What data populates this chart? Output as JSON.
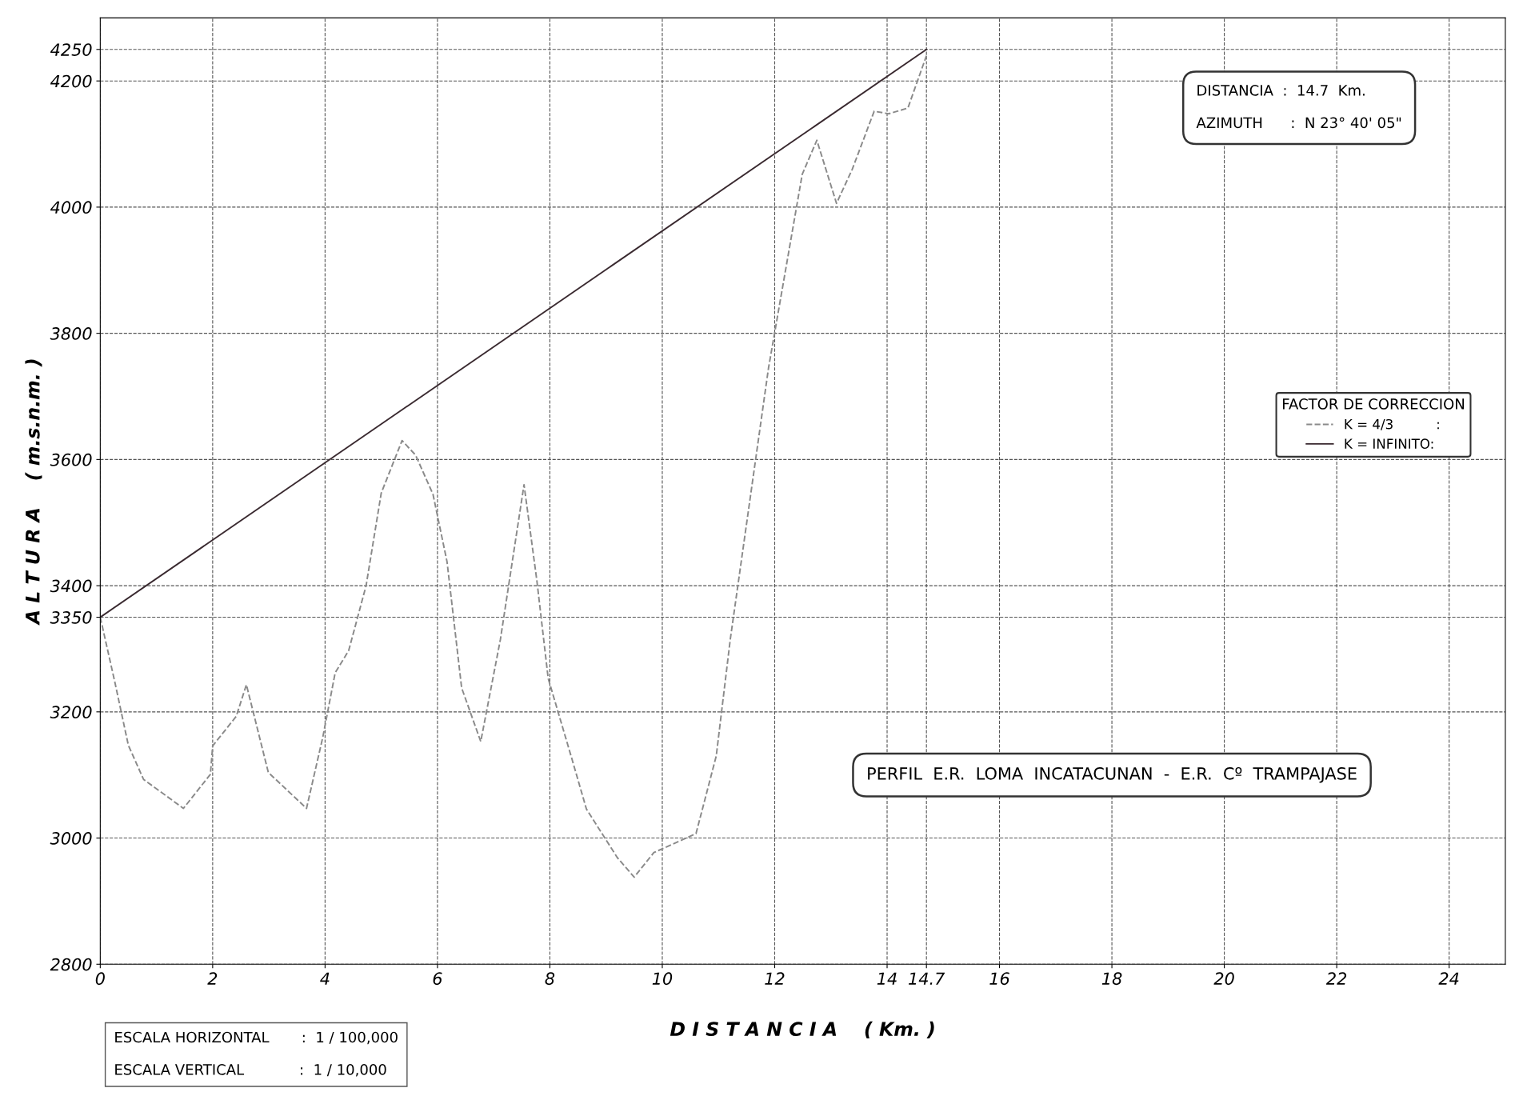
{
  "chart_data": {
    "type": "line",
    "title": "PERFIL  E.R.  LOMA  INCATACUNAN  -  E.R.  Cº  TRAMPAJASE",
    "xlabel": "D I S T A N C I A    ( Km. )",
    "ylabel": "A L T U R A    ( m.s.n.m. )",
    "legend_title": "FACTOR DE CORRECCION",
    "legend": "right",
    "grid": true,
    "xlim": [
      0,
      25
    ],
    "xticks": [
      0,
      2,
      4,
      6,
      8,
      10,
      12,
      14,
      14.7,
      16,
      18,
      20,
      22,
      24
    ],
    "ylim": [
      2800,
      4300
    ],
    "yticks": [
      2800,
      3000,
      3200,
      3350,
      3400,
      3600,
      3800,
      4000,
      4200,
      4250
    ],
    "series": [
      {
        "name": "K = 4/3          :",
        "color": "#8a8a8a",
        "line_style": "dashed",
        "x": [
          0,
          0.26,
          0.5,
          0.77,
          1.48,
          1.96,
          2.0,
          2.42,
          2.6,
          2.99,
          3.67,
          3.96,
          4.18,
          4.42,
          4.73,
          5.0,
          5.37,
          5.61,
          5.92,
          6.17,
          6.43,
          6.77,
          7.12,
          7.54,
          7.77,
          7.97,
          8.4,
          8.65,
          9.2,
          9.5,
          9.85,
          10.6,
          10.96,
          11.21,
          11.89,
          12.49,
          12.75,
          13.1,
          13.38,
          13.77,
          14.03,
          14.37,
          14.7
        ],
        "values": [
          3350,
          3247,
          3147,
          3093,
          3047,
          3101,
          3146,
          3193,
          3243,
          3104,
          3047,
          3160,
          3262,
          3297,
          3400,
          3547,
          3630,
          3607,
          3545,
          3438,
          3238,
          3153,
          3315,
          3560,
          3407,
          3253,
          3123,
          3046,
          2969,
          2938,
          2977,
          3007,
          3130,
          3315,
          3745,
          4052,
          4106,
          4006,
          4060,
          4152,
          4148,
          4157,
          4240
        ]
      },
      {
        "name": "K = INFINITO:",
        "color": "#3a2a30",
        "line_style": "solid",
        "x": [
          0,
          14.7
        ],
        "values": [
          3350,
          4250
        ]
      }
    ],
    "annotations": [
      "DISTANCIA  :  14.7  Km.",
      "AZIMUTH      :  N 23° 40' 05\"",
      "ESCALA HORIZONTAL       :  1 / 100,000",
      "ESCALA VERTICAL            :  1 / 10,000"
    ]
  }
}
